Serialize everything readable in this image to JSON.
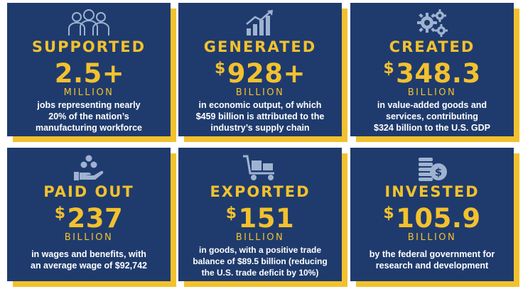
{
  "cards": [
    {
      "verb": "SUPPORTED",
      "dollar": "",
      "amount": "2.5+",
      "unit": "MILLION",
      "desc": [
        "jobs representing nearly",
        "20% of the nation’s",
        "manufacturing workforce"
      ],
      "icon": "people-icon"
    },
    {
      "verb": "GENERATED",
      "dollar": "$",
      "amount": "928+",
      "unit": "BILLION",
      "desc": [
        "in economic output, of which",
        "$459 billion is attributed to the",
        "industry’s supply chain"
      ],
      "icon": "growth-chart-icon"
    },
    {
      "verb": "CREATED",
      "dollar": "$",
      "amount": "348.3",
      "unit": "BILLION",
      "desc": [
        "in value-added goods and",
        "services, contributing",
        "$324 billion to the U.S. GDP"
      ],
      "icon": "gears-icon"
    },
    {
      "verb": "PAID OUT",
      "dollar": "$",
      "amount": "237",
      "unit": "BILLION",
      "desc": [
        "in wages and benefits, with",
        "an average wage of $92,742"
      ],
      "icon": "hand-coins-icon"
    },
    {
      "verb": "EXPORTED",
      "dollar": "$",
      "amount": "151",
      "unit": "BILLION",
      "desc": [
        "in goods, with a positive trade",
        "balance of $89.5 billion (reducing",
        "the U.S. trade deficit by 10%)"
      ],
      "icon": "cart-icon"
    },
    {
      "verb": "INVESTED",
      "dollar": "$",
      "amount": "105.9",
      "unit": "BILLION",
      "desc": [
        "by the federal government for",
        "research and development"
      ],
      "icon": "coin-stack-icon"
    }
  ],
  "colors": {
    "navy": "#1f3b6d",
    "gold": "#f2c12e",
    "icon": "#9fb3d1"
  }
}
